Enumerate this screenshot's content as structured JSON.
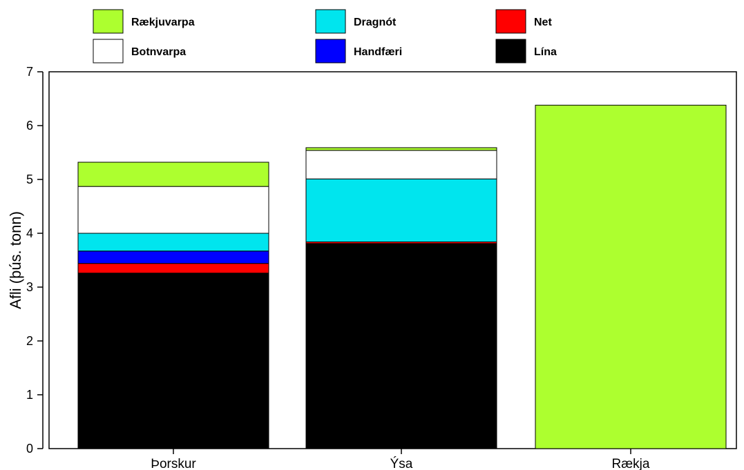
{
  "chart_data": {
    "type": "bar",
    "stacked": true,
    "title": "",
    "xlabel": "",
    "ylabel": "Afli (þús. tonn)",
    "ylim": [
      0,
      7
    ],
    "yticks": [
      "0",
      "1",
      "2",
      "3",
      "4",
      "5",
      "6",
      "7"
    ],
    "grid": false,
    "legend_position": "top",
    "categories": [
      "Þorskur",
      "Ýsa",
      "Rækja"
    ],
    "series": [
      {
        "name": "Lína",
        "color": "#000000",
        "values": [
          3.26,
          3.81,
          0
        ]
      },
      {
        "name": "Net",
        "color": "#ff0000",
        "values": [
          0.18,
          0.03,
          0
        ]
      },
      {
        "name": "Handfæri",
        "color": "#0000ff",
        "values": [
          0.23,
          0,
          0
        ]
      },
      {
        "name": "Dragnót",
        "color": "#00e5ee",
        "values": [
          0.33,
          1.17,
          0
        ]
      },
      {
        "name": "Botnvarpa",
        "color": "#ffffff",
        "values": [
          0.87,
          0.53,
          0
        ]
      },
      {
        "name": "Rækjuvarpa",
        "color": "#adff2f",
        "values": [
          0.45,
          0.05,
          6.38
        ]
      }
    ],
    "legend_order": [
      "Rækjuvarpa",
      "Dragnót",
      "Net",
      "Botnvarpa",
      "Handfæri",
      "Lína"
    ]
  }
}
